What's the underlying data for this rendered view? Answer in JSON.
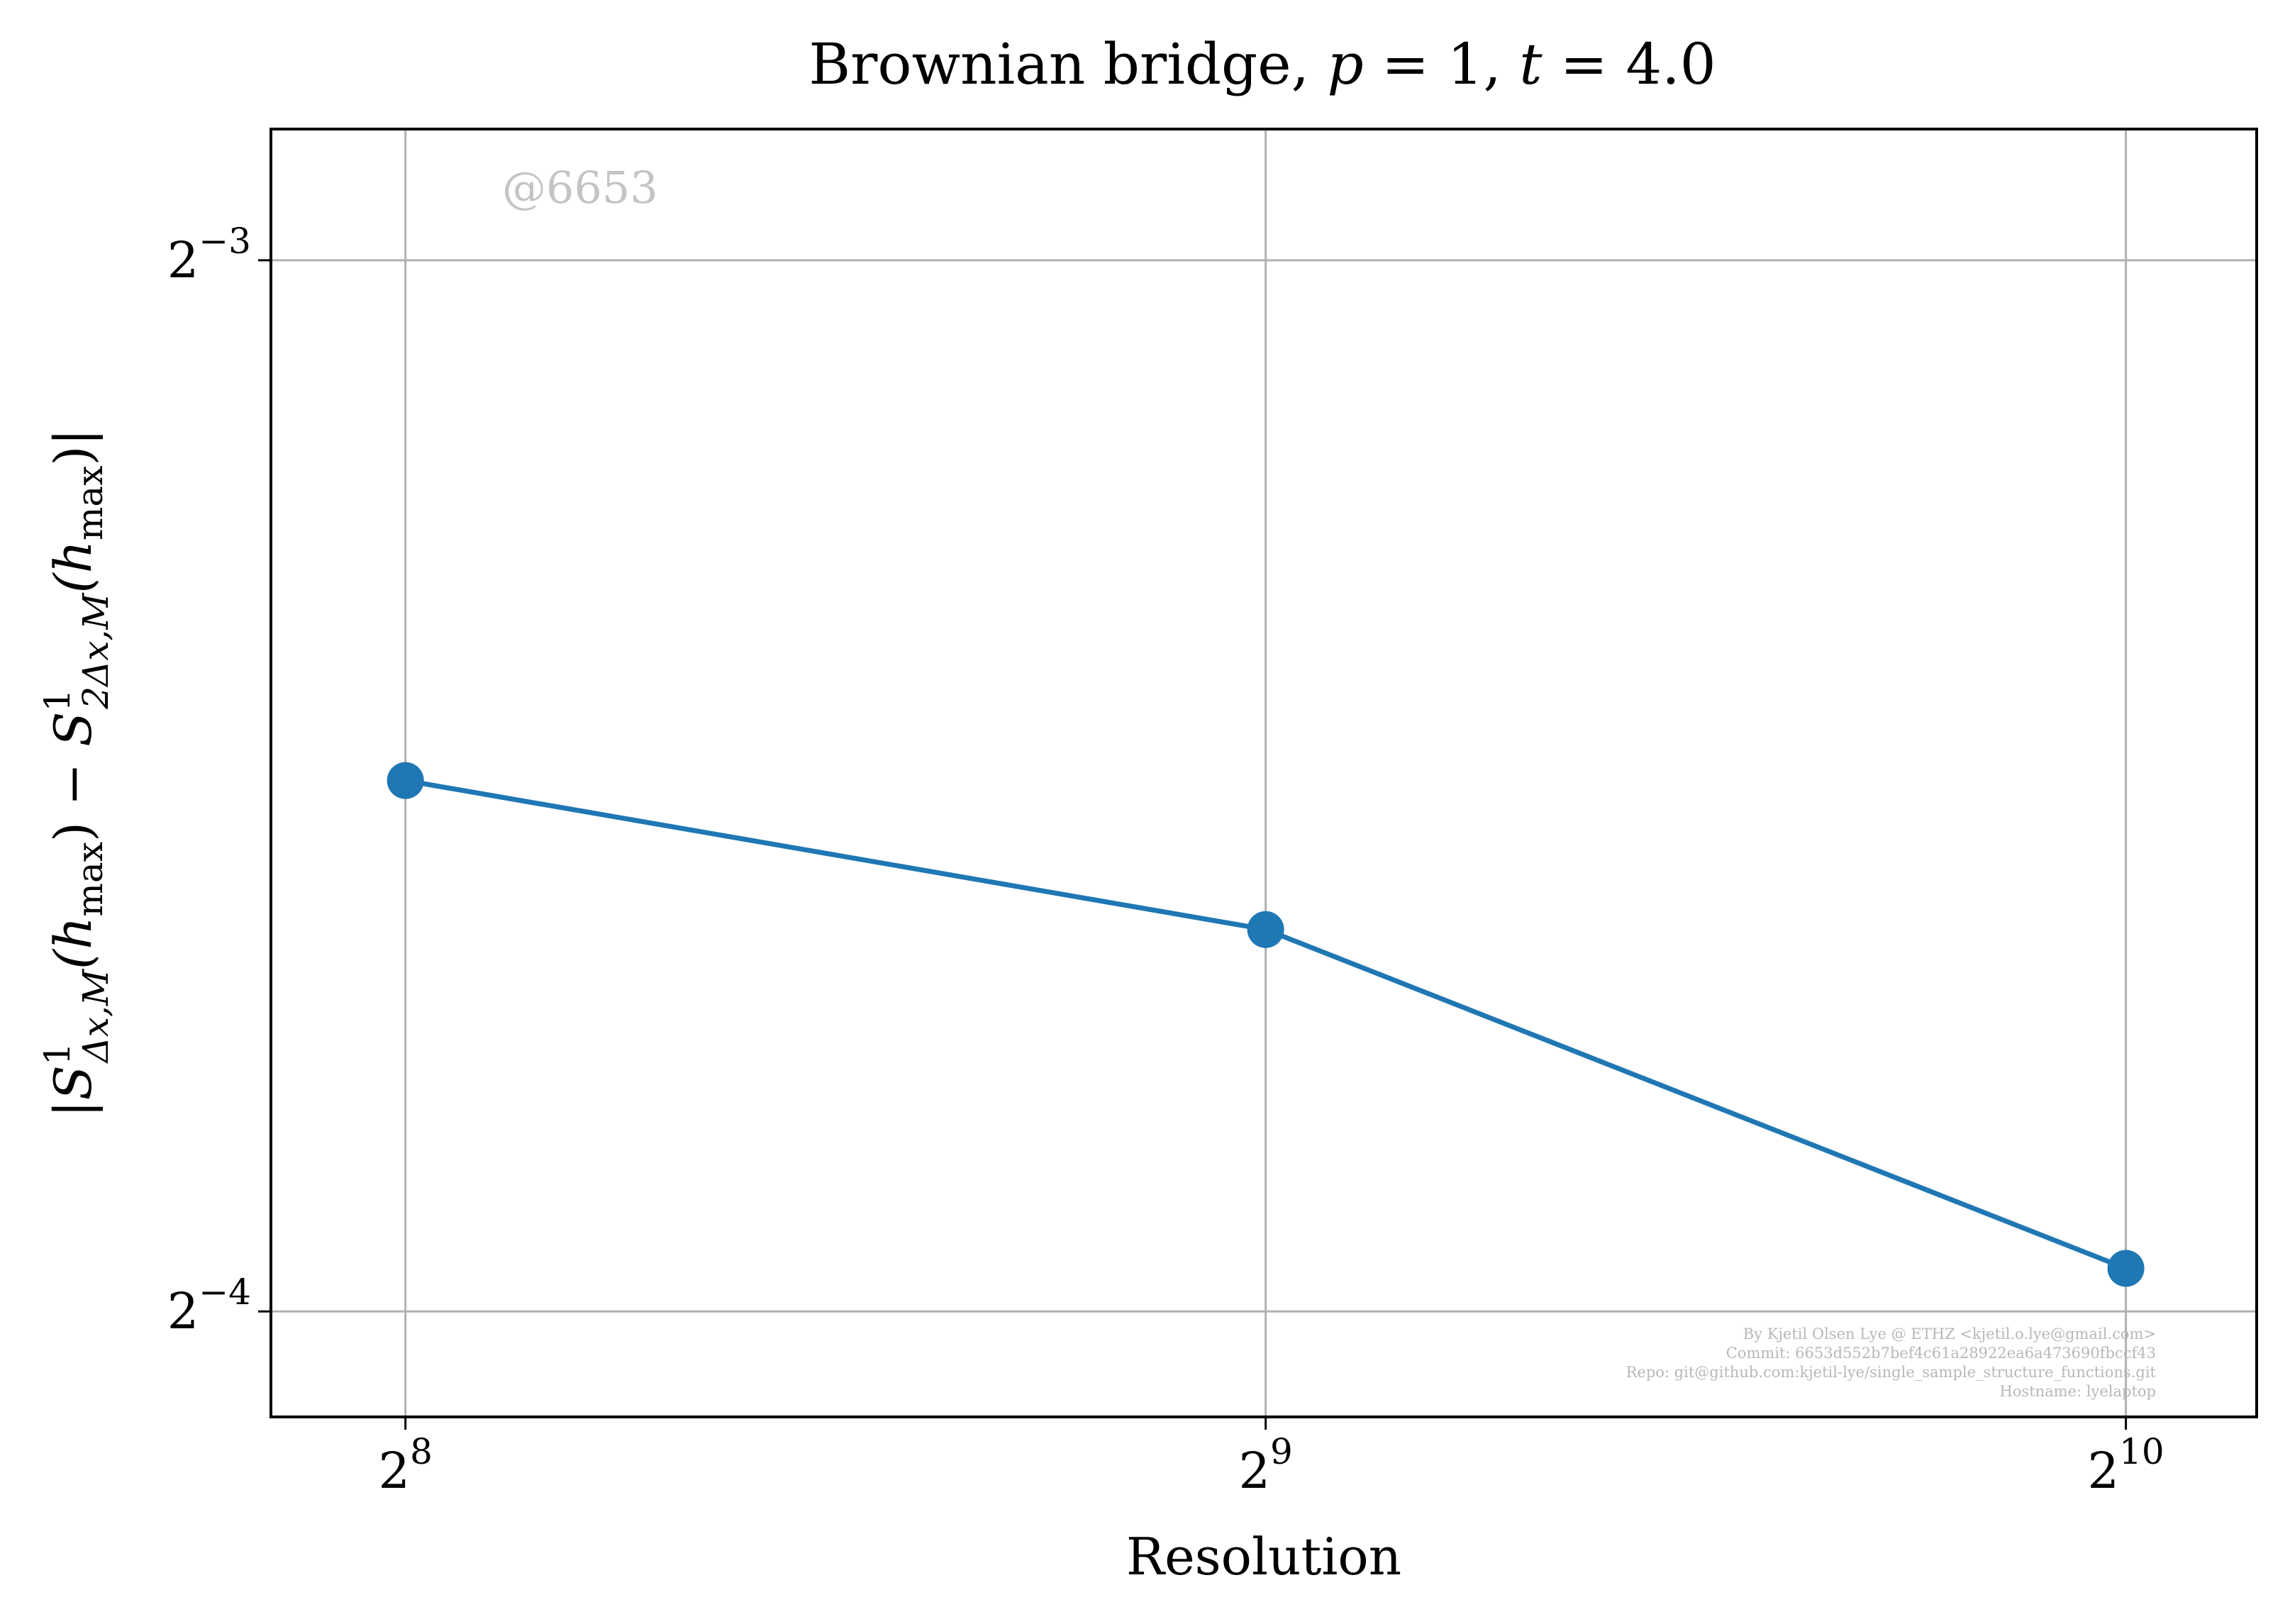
{
  "chart_data": {
    "type": "line",
    "title": "Brownian bridge, p = 1, t = 4.0",
    "title_parts": {
      "prefix": "Brownian bridge, ",
      "p_symbol": "p",
      "p_eq": " = 1, ",
      "t_symbol": "t",
      "t_eq": " = 4.0"
    },
    "xlabel": "Resolution",
    "ylabel": "|S¹Δx,M(hmax) − S¹2Δx,M(hmax)|",
    "ylabel_parts": {
      "bar_open": "|",
      "s1": "S",
      "sup1": "1",
      "sub1": "Δx,M",
      "paren1": "(h",
      "max1": "max",
      "close1": ")",
      "minus": " − ",
      "s2": "S",
      "sup2": "1",
      "sub2": "2Δx,M",
      "paren2": "(h",
      "max2": "max",
      "close2": ")",
      "bar_close": "|"
    },
    "x_scale": "log2",
    "y_scale": "log2",
    "x": [
      256,
      512,
      1024
    ],
    "series": [
      {
        "values": [
          0.0887,
          0.0804,
          0.0643
        ],
        "color": "#1f77b4"
      }
    ],
    "x_ticks": [
      {
        "base": "2",
        "exp": "8",
        "value": 256
      },
      {
        "base": "2",
        "exp": "9",
        "value": 512
      },
      {
        "base": "2",
        "exp": "10",
        "value": 1024
      }
    ],
    "y_ticks": [
      {
        "base": "2",
        "exp": "−3",
        "value": 0.125
      },
      {
        "base": "2",
        "exp": "−4",
        "value": 0.0625
      }
    ],
    "xlim": [
      229.7,
      1137.8
    ],
    "ylim": [
      0.0583,
      0.1363
    ],
    "grid": true,
    "watermark": "@6653",
    "footer_lines": [
      "By Kjetil Olsen Lye @ ETHZ <kjetil.o.lye@gmail.com>",
      "Commit: 6653d552b7bef4c61a28922ea6a473690fbccf43",
      "Repo: git@github.com:kjetil-lye/single_sample_structure_functions.git",
      "Hostname: lyelaptop"
    ],
    "colors": {
      "grid": "#b0b0b0",
      "axes": "#000000",
      "watermark": "#c4c4c4",
      "footer": "#b8b8b8"
    }
  }
}
